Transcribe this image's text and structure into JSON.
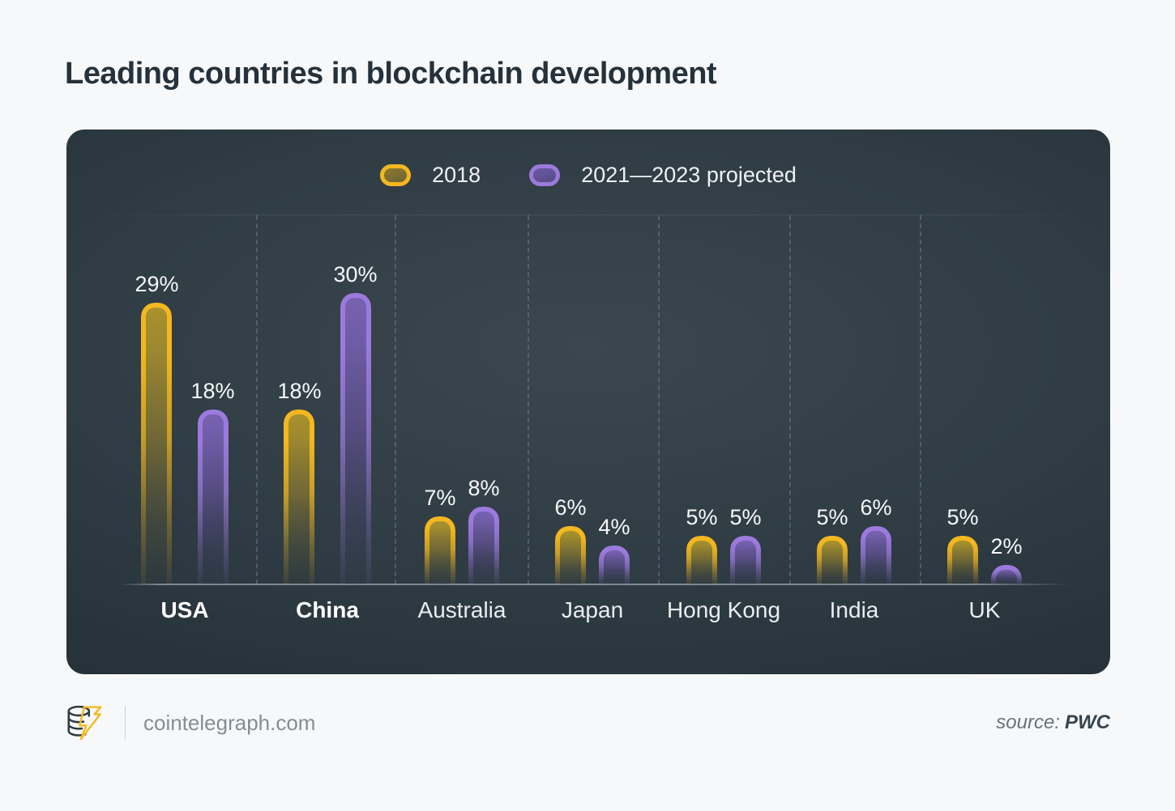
{
  "title": "Leading countries in blockchain development",
  "chart_data": {
    "type": "bar",
    "categories": [
      "USA",
      "China",
      "Australia",
      "Japan",
      "Hong Kong",
      "India",
      "UK"
    ],
    "series": [
      {
        "name": "2018",
        "color": "#f3b71f",
        "values": [
          29,
          18,
          7,
          6,
          5,
          5,
          5
        ]
      },
      {
        "name": "2021—2023 projected",
        "color": "#9c7add",
        "values": [
          18,
          30,
          8,
          4,
          5,
          6,
          2
        ]
      }
    ],
    "value_suffix": "%",
    "ylim": [
      0,
      32
    ],
    "grid": "dashed-vertical-separators",
    "legend_position": "top-center",
    "emphasized_categories": [
      "USA",
      "China"
    ],
    "title": "Leading countries in blockchain development"
  },
  "footer": {
    "brand": "cointelegraph.com",
    "source_label": "source:",
    "source_value": "PWC"
  },
  "colors": {
    "series_2018": "#f3b71f",
    "series_projected": "#9c7add",
    "panel_background": "#303d45",
    "page_background": "#f7f8f9",
    "title_text": "#25313b"
  }
}
